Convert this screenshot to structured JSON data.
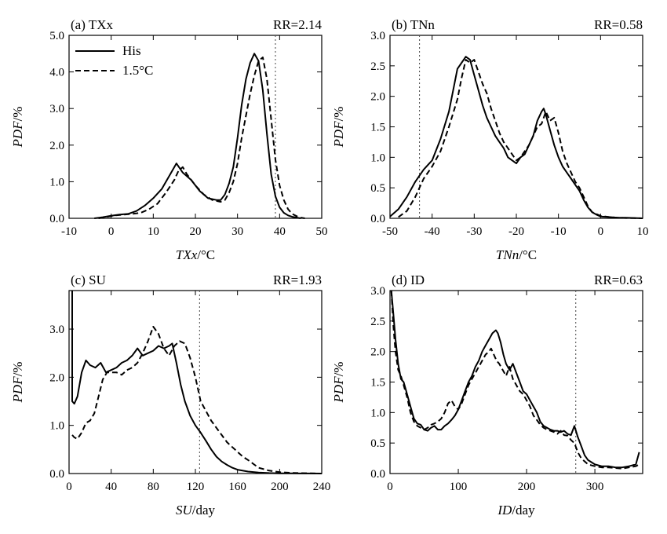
{
  "chart_data": [
    {
      "type": "line",
      "panel_label": "(a) TXx",
      "rr_label": "RR=2.14",
      "xlabel_var": "TXx",
      "xlabel_unit": "/°C",
      "ylabel_var": "PDF",
      "ylabel_unit": "/%",
      "xlim": [
        -10,
        50
      ],
      "ylim": [
        0,
        5
      ],
      "xticks": [
        -10,
        0,
        10,
        20,
        30,
        40,
        50
      ],
      "xtick_labels": [
        "-10",
        "0",
        "10",
        "20",
        "30",
        "40",
        "50"
      ],
      "yticks": [
        0,
        1,
        2,
        3,
        4,
        5
      ],
      "ytick_labels": [
        "0.0",
        "1.0",
        "2.0",
        "3.0",
        "4.0",
        "5.0"
      ],
      "threshold_x": 39,
      "legend": {
        "position": "top-left",
        "entries": [
          "His",
          "1.5°C"
        ]
      },
      "series": [
        {
          "name": "His",
          "style": "solid",
          "x": [
            -4,
            -2,
            0,
            2,
            4,
            6,
            8,
            10,
            12,
            14,
            15.5,
            17,
            19,
            21,
            23,
            25,
            26,
            27,
            28,
            29,
            30,
            31,
            32,
            33,
            34,
            35,
            36,
            37,
            38,
            39,
            40,
            41,
            42,
            43,
            44,
            45
          ],
          "y": [
            0,
            0.03,
            0.07,
            0.1,
            0.12,
            0.2,
            0.35,
            0.55,
            0.8,
            1.2,
            1.5,
            1.25,
            1.05,
            0.75,
            0.55,
            0.5,
            0.5,
            0.65,
            0.95,
            1.4,
            2.2,
            3.1,
            3.8,
            4.25,
            4.5,
            4.3,
            3.5,
            2.3,
            1.2,
            0.6,
            0.3,
            0.15,
            0.08,
            0.04,
            0.02,
            0
          ]
        },
        {
          "name": "1.5°C",
          "style": "dashed",
          "x": [
            -3,
            -1,
            1,
            3,
            5,
            7,
            9,
            11,
            13,
            15,
            16,
            17,
            18,
            20,
            22,
            24,
            26,
            27,
            28,
            29,
            30,
            31,
            32,
            33,
            34,
            35,
            36,
            37,
            38,
            39,
            40,
            41,
            42,
            43,
            44,
            45,
            46
          ],
          "y": [
            0,
            0.04,
            0.08,
            0.1,
            0.12,
            0.15,
            0.25,
            0.4,
            0.7,
            1.05,
            1.3,
            1.4,
            1.2,
            0.9,
            0.65,
            0.5,
            0.45,
            0.5,
            0.7,
            1.0,
            1.5,
            2.2,
            2.8,
            3.4,
            3.9,
            4.3,
            4.4,
            3.8,
            2.7,
            1.6,
            0.9,
            0.5,
            0.25,
            0.12,
            0.06,
            0.02,
            0
          ]
        }
      ]
    },
    {
      "type": "line",
      "panel_label": "(b) TNn",
      "rr_label": "RR=0.58",
      "xlabel_var": "TNn",
      "xlabel_unit": "/°C",
      "ylabel_var": "PDF",
      "ylabel_unit": "/%",
      "xlim": [
        -50,
        10
      ],
      "ylim": [
        0,
        3
      ],
      "xticks": [
        -50,
        -40,
        -30,
        -20,
        -10,
        0,
        10
      ],
      "xtick_labels": [
        "-50",
        "-40",
        "-30",
        "-20",
        "-10",
        "0",
        "10"
      ],
      "yticks": [
        0,
        0.5,
        1,
        1.5,
        2,
        2.5,
        3
      ],
      "ytick_labels": [
        "0.0",
        "0.5",
        "1.0",
        "1.5",
        "2.0",
        "2.5",
        "3.0"
      ],
      "threshold_x": -43,
      "series": [
        {
          "name": "His",
          "style": "solid",
          "x": [
            -50,
            -48,
            -46,
            -44,
            -42,
            -40,
            -38,
            -36,
            -35,
            -34,
            -33,
            -32,
            -31,
            -30,
            -29,
            -28,
            -27,
            -26,
            -25,
            -24,
            -23,
            -22,
            -21,
            -20,
            -19,
            -18,
            -17,
            -16,
            -15,
            -14,
            -13.5,
            -13,
            -12,
            -11,
            -10,
            -9,
            -8,
            -7,
            -6,
            -5,
            -4,
            -3,
            -2,
            -1,
            0,
            2,
            4,
            6,
            8,
            10
          ],
          "y": [
            0.03,
            0.15,
            0.35,
            0.6,
            0.8,
            0.95,
            1.3,
            1.75,
            2.1,
            2.45,
            2.55,
            2.65,
            2.6,
            2.35,
            2.1,
            1.85,
            1.65,
            1.5,
            1.35,
            1.25,
            1.15,
            1.0,
            0.95,
            0.9,
            1.0,
            1.05,
            1.2,
            1.35,
            1.6,
            1.75,
            1.8,
            1.7,
            1.45,
            1.2,
            1.0,
            0.85,
            0.75,
            0.65,
            0.55,
            0.45,
            0.3,
            0.18,
            0.1,
            0.06,
            0.03,
            0.02,
            0.01,
            0.01,
            0.005,
            0
          ]
        },
        {
          "name": "1.5°C",
          "style": "dashed",
          "x": [
            -48,
            -46,
            -44,
            -42,
            -40,
            -38,
            -36,
            -34,
            -33,
            -32,
            -31,
            -30,
            -29,
            -28,
            -27,
            -26,
            -25,
            -24,
            -23,
            -22,
            -21,
            -20,
            -19,
            -18,
            -17,
            -16,
            -15,
            -14,
            -13,
            -12,
            -11,
            -10,
            -9,
            -8,
            -7,
            -6,
            -5,
            -4,
            -3,
            -2,
            0,
            2,
            4,
            6,
            8,
            10
          ],
          "y": [
            0.02,
            0.12,
            0.35,
            0.65,
            0.85,
            1.1,
            1.5,
            1.95,
            2.3,
            2.6,
            2.55,
            2.6,
            2.4,
            2.2,
            2.05,
            1.8,
            1.6,
            1.4,
            1.25,
            1.15,
            1.05,
            0.95,
            1.0,
            1.1,
            1.2,
            1.35,
            1.5,
            1.55,
            1.75,
            1.6,
            1.65,
            1.4,
            1.1,
            0.9,
            0.75,
            0.6,
            0.5,
            0.35,
            0.2,
            0.1,
            0.04,
            0.02,
            0.01,
            0.005,
            0.002,
            0
          ]
        }
      ]
    },
    {
      "type": "line",
      "panel_label": "(c) SU",
      "rr_label": "RR=1.93",
      "xlabel_var": "SU",
      "xlabel_unit": "/day",
      "ylabel_var": "PDF",
      "ylabel_unit": "/%",
      "xlim": [
        0,
        240
      ],
      "ylim": [
        0,
        3.8
      ],
      "xticks": [
        0,
        40,
        80,
        120,
        160,
        200,
        240
      ],
      "xtick_labels": [
        "0",
        "40",
        "80",
        "120",
        "160",
        "200",
        "240"
      ],
      "yticks": [
        0,
        1,
        2,
        3
      ],
      "ytick_labels": [
        "0.0",
        "1.0",
        "2.0",
        "3.0"
      ],
      "threshold_x": 124,
      "series": [
        {
          "name": "His",
          "style": "solid",
          "x": [
            3,
            3,
            5,
            8,
            12,
            16,
            20,
            25,
            30,
            35,
            40,
            45,
            50,
            55,
            60,
            65,
            70,
            75,
            80,
            85,
            90,
            95,
            98,
            102,
            106,
            110,
            115,
            120,
            125,
            130,
            135,
            140,
            145,
            150,
            155,
            160,
            170,
            180,
            190,
            200,
            210,
            220,
            230,
            240
          ],
          "y": [
            3.8,
            1.5,
            1.45,
            1.6,
            2.1,
            2.35,
            2.25,
            2.2,
            2.3,
            2.1,
            2.15,
            2.2,
            2.3,
            2.35,
            2.45,
            2.6,
            2.45,
            2.5,
            2.55,
            2.65,
            2.6,
            2.65,
            2.7,
            2.3,
            1.85,
            1.5,
            1.2,
            1.0,
            0.85,
            0.68,
            0.5,
            0.35,
            0.25,
            0.18,
            0.12,
            0.08,
            0.04,
            0.02,
            0.01,
            0.005,
            0.003,
            0.002,
            0.001,
            0
          ]
        },
        {
          "name": "1.5°C",
          "style": "dashed",
          "x": [
            3,
            5,
            8,
            12,
            16,
            20,
            24,
            28,
            32,
            36,
            40,
            45,
            50,
            55,
            60,
            65,
            70,
            75,
            80,
            85,
            90,
            95,
            100,
            105,
            110,
            115,
            120,
            125,
            130,
            135,
            140,
            145,
            150,
            155,
            160,
            165,
            170,
            175,
            180,
            190,
            200,
            210,
            220,
            230,
            240
          ],
          "y": [
            0.8,
            0.75,
            0.72,
            0.85,
            1.05,
            1.1,
            1.25,
            1.6,
            1.95,
            2.1,
            2.1,
            2.1,
            2.05,
            2.15,
            2.2,
            2.3,
            2.5,
            2.75,
            3.05,
            2.9,
            2.6,
            2.45,
            2.65,
            2.75,
            2.7,
            2.4,
            2.0,
            1.5,
            1.3,
            1.1,
            0.95,
            0.8,
            0.65,
            0.55,
            0.45,
            0.35,
            0.28,
            0.2,
            0.12,
            0.06,
            0.03,
            0.015,
            0.008,
            0.004,
            0
          ]
        }
      ]
    },
    {
      "type": "line",
      "panel_label": "(d) ID",
      "rr_label": "RR=0.63",
      "xlabel_var": "ID",
      "xlabel_unit": "/day",
      "ylabel_var": "PDF",
      "ylabel_unit": "/%",
      "xlim": [
        0,
        370
      ],
      "ylim": [
        0,
        3
      ],
      "xticks": [
        0,
        100,
        200,
        300
      ],
      "xtick_labels": [
        "0",
        "100",
        "200",
        "300"
      ],
      "yticks": [
        0,
        0.5,
        1,
        1.5,
        2,
        2.5,
        3
      ],
      "ytick_labels": [
        "0.0",
        "0.5",
        "1.0",
        "1.5",
        "2.0",
        "2.5",
        "3.0"
      ],
      "threshold_x": 272,
      "series": [
        {
          "name": "His",
          "style": "solid",
          "x": [
            2,
            5,
            8,
            12,
            16,
            20,
            25,
            30,
            35,
            40,
            45,
            50,
            55,
            60,
            65,
            70,
            75,
            80,
            85,
            90,
            95,
            100,
            105,
            110,
            115,
            120,
            125,
            130,
            135,
            140,
            145,
            150,
            155,
            158,
            162,
            166,
            170,
            175,
            180,
            185,
            190,
            195,
            200,
            205,
            210,
            215,
            220,
            225,
            230,
            235,
            240,
            245,
            250,
            255,
            260,
            265,
            270,
            275,
            280,
            285,
            290,
            300,
            310,
            320,
            330,
            340,
            350,
            360,
            365
          ],
          "y": [
            3.0,
            2.6,
            2.2,
            1.8,
            1.55,
            1.5,
            1.3,
            1.1,
            0.9,
            0.82,
            0.8,
            0.72,
            0.7,
            0.75,
            0.78,
            0.72,
            0.72,
            0.78,
            0.82,
            0.88,
            0.95,
            1.05,
            1.2,
            1.35,
            1.5,
            1.6,
            1.75,
            1.85,
            2.0,
            2.1,
            2.2,
            2.3,
            2.35,
            2.3,
            2.15,
            1.95,
            1.8,
            1.7,
            1.8,
            1.65,
            1.5,
            1.35,
            1.3,
            1.2,
            1.1,
            1.0,
            0.85,
            0.78,
            0.75,
            0.72,
            0.7,
            0.7,
            0.68,
            0.7,
            0.65,
            0.63,
            0.78,
            0.6,
            0.45,
            0.3,
            0.22,
            0.15,
            0.12,
            0.12,
            0.1,
            0.1,
            0.12,
            0.15,
            0.35
          ]
        },
        {
          "name": "1.5°C",
          "style": "dashed",
          "x": [
            2,
            5,
            8,
            12,
            16,
            20,
            25,
            30,
            35,
            40,
            45,
            50,
            55,
            60,
            65,
            70,
            75,
            80,
            85,
            90,
            95,
            100,
            105,
            110,
            115,
            120,
            125,
            130,
            135,
            140,
            145,
            148,
            152,
            156,
            160,
            165,
            170,
            175,
            180,
            185,
            190,
            195,
            200,
            205,
            210,
            215,
            220,
            225,
            230,
            235,
            240,
            245,
            250,
            255,
            260,
            265,
            270,
            275,
            280,
            285,
            290,
            300,
            310,
            320,
            330,
            340,
            350,
            360,
            365
          ],
          "y": [
            3.0,
            2.4,
            2.0,
            1.7,
            1.6,
            1.45,
            1.25,
            1.0,
            0.85,
            0.78,
            0.75,
            0.72,
            0.75,
            0.8,
            0.82,
            0.85,
            0.9,
            1.0,
            1.15,
            1.2,
            1.1,
            1.05,
            1.15,
            1.3,
            1.45,
            1.55,
            1.65,
            1.75,
            1.85,
            1.95,
            2.0,
            2.05,
            1.95,
            1.85,
            1.8,
            1.7,
            1.6,
            1.75,
            1.55,
            1.45,
            1.35,
            1.3,
            1.2,
            1.1,
            0.95,
            0.88,
            0.8,
            0.75,
            0.72,
            0.7,
            0.68,
            0.65,
            0.7,
            0.63,
            0.62,
            0.55,
            0.5,
            0.35,
            0.25,
            0.2,
            0.15,
            0.12,
            0.1,
            0.1,
            0.09,
            0.08,
            0.1,
            0.12,
            0.15
          ]
        }
      ]
    }
  ]
}
